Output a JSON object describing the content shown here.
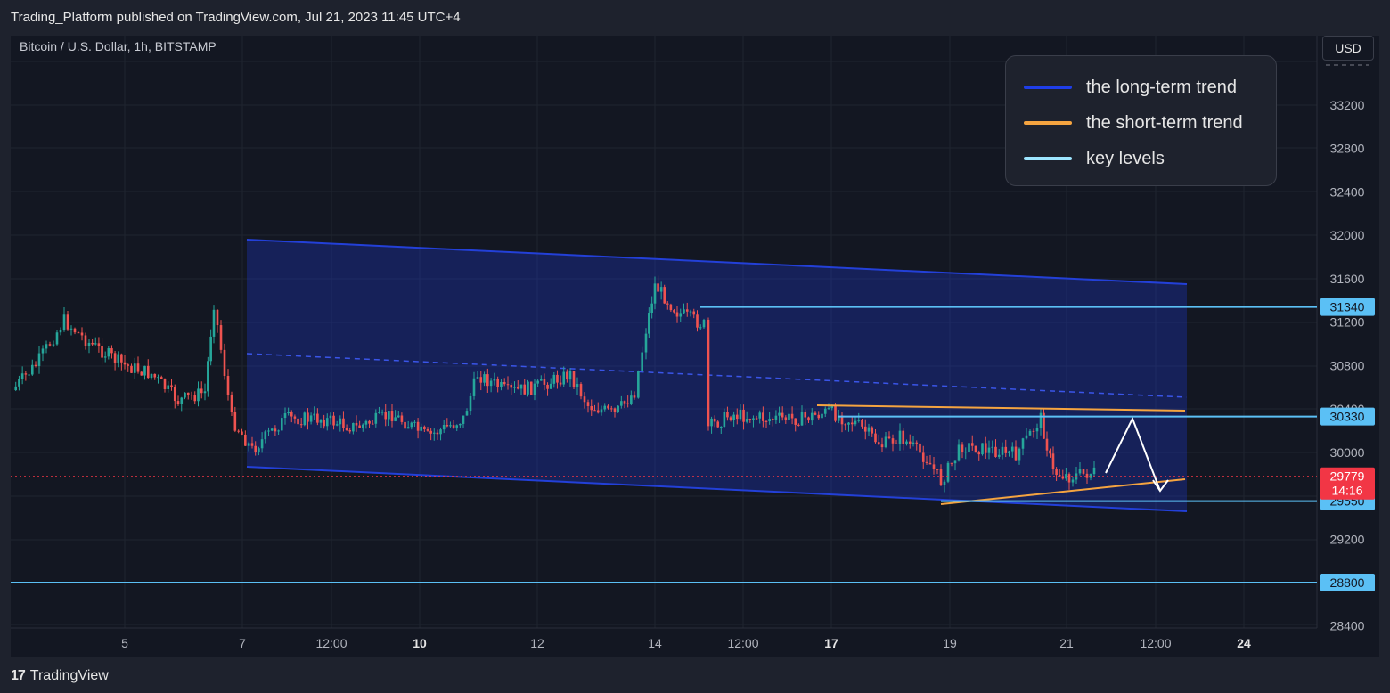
{
  "header": {
    "published": "Trading_Platform published on TradingView.com, Jul 21, 2023 11:45 UTC+4"
  },
  "symbol": "Bitcoin / U.S. Dollar, 1h, BITSTAMP",
  "currency_button": "USD",
  "legend": {
    "items": [
      {
        "label": "the long-term trend",
        "color": "#1f3ee8"
      },
      {
        "label": "the short-term trend",
        "color": "#f5a440"
      },
      {
        "label": "key levels",
        "color": "#9de5ff"
      }
    ]
  },
  "price_axis": {
    "ticks": [
      "33200",
      "32800",
      "32400",
      "32000",
      "31600",
      "31200",
      "30800",
      "30400",
      "30000",
      "29600",
      "29200",
      "28800",
      "28400"
    ]
  },
  "time_axis": {
    "ticks": [
      {
        "label": "5",
        "bold": false
      },
      {
        "label": "7",
        "bold": false
      },
      {
        "label": "12:00",
        "bold": false
      },
      {
        "label": "10",
        "bold": true
      },
      {
        "label": "12",
        "bold": false
      },
      {
        "label": "14",
        "bold": false
      },
      {
        "label": "12:00",
        "bold": false
      },
      {
        "label": "17",
        "bold": true
      },
      {
        "label": "19",
        "bold": false
      },
      {
        "label": "21",
        "bold": false
      },
      {
        "label": "12:00",
        "bold": false
      },
      {
        "label": "24",
        "bold": true
      }
    ]
  },
  "key_levels": [
    {
      "label": "31340",
      "value": 31340
    },
    {
      "label": "30330",
      "value": 30330
    },
    {
      "label": "29550",
      "value": 29550
    },
    {
      "label": "28800",
      "value": 28800
    }
  ],
  "last_price": {
    "price": "29779",
    "countdown": "14:16",
    "color": "#f23645"
  },
  "colors": {
    "up": "#26a69a",
    "down": "#ef5350",
    "channel": "#1f3ee8",
    "short_trend": "#f5a440",
    "key_level": "#5bc0f5"
  },
  "footer": {
    "brand": "TradingView",
    "logo_icon": "tradingview-logo-icon"
  }
}
